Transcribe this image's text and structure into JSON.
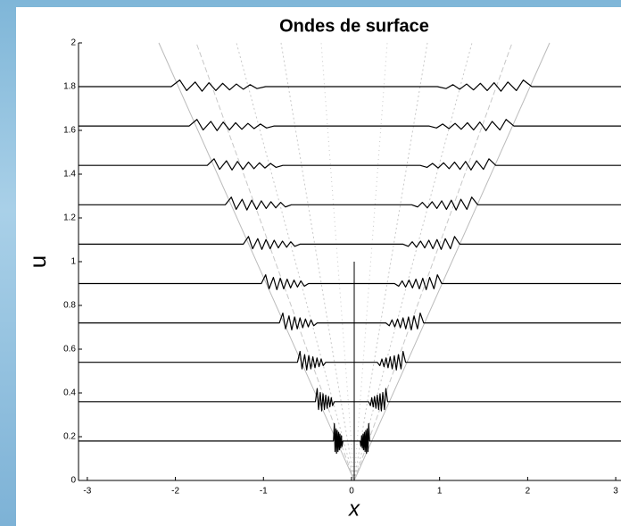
{
  "chart_data": {
    "type": "line",
    "title": "Ondes de surface",
    "x_label": "x",
    "y_label": "u",
    "xlim": [
      -3.1,
      3.06
    ],
    "ylim": [
      0,
      2
    ],
    "xticks": [
      -3,
      -2,
      -1,
      0,
      1,
      2,
      3
    ],
    "yticks": [
      0,
      0.2,
      0.4,
      0.6,
      0.8,
      1,
      1.2,
      1.4,
      1.6,
      1.8,
      2
    ],
    "series": [
      {
        "color": "#000000",
        "x": [
          -3.1,
          -0.205,
          -0.195,
          -0.187,
          -0.177,
          -0.17,
          -0.162,
          -0.154,
          -0.146,
          -0.138,
          -0.131,
          -0.123,
          -0.115,
          -0.107,
          -0.098,
          0.098,
          0.107,
          0.115,
          0.123,
          0.131,
          0.138,
          0.146,
          0.154,
          0.162,
          0.17,
          0.177,
          0.187,
          0.195,
          0.205,
          3.06
        ],
        "values": [
          0.18,
          0.18,
          0.26,
          0.132,
          0.236,
          0.124,
          0.228,
          0.132,
          0.22,
          0.14,
          0.212,
          0.148,
          0.204,
          0.156,
          0.18,
          0.18,
          0.156,
          0.204,
          0.148,
          0.212,
          0.14,
          0.22,
          0.132,
          0.228,
          0.124,
          0.236,
          0.132,
          0.26,
          0.18,
          0.18
        ]
      },
      {
        "color": "#000000",
        "x": [
          -3.1,
          -0.41,
          -0.39,
          -0.374,
          -0.355,
          -0.339,
          -0.324,
          -0.308,
          -0.293,
          -0.277,
          -0.261,
          -0.246,
          -0.23,
          -0.215,
          -0.195,
          0.195,
          0.215,
          0.23,
          0.246,
          0.261,
          0.277,
          0.293,
          0.308,
          0.324,
          0.339,
          0.355,
          0.374,
          0.39,
          0.41,
          3.06
        ],
        "values": [
          0.36,
          0.36,
          0.42,
          0.324,
          0.402,
          0.318,
          0.396,
          0.324,
          0.39,
          0.33,
          0.384,
          0.336,
          0.378,
          0.342,
          0.36,
          0.36,
          0.342,
          0.378,
          0.336,
          0.384,
          0.33,
          0.39,
          0.324,
          0.396,
          0.318,
          0.402,
          0.324,
          0.42,
          0.36,
          0.36
        ]
      },
      {
        "color": "#000000",
        "x": [
          -3.1,
          -0.614,
          -0.585,
          -0.562,
          -0.532,
          -0.509,
          -0.486,
          -0.462,
          -0.439,
          -0.415,
          -0.392,
          -0.369,
          -0.345,
          -0.322,
          -0.293,
          0.293,
          0.322,
          0.345,
          0.369,
          0.392,
          0.415,
          0.439,
          0.462,
          0.486,
          0.509,
          0.532,
          0.562,
          0.585,
          0.614,
          3.06
        ],
        "values": [
          0.54,
          0.54,
          0.59,
          0.51,
          0.575,
          0.505,
          0.57,
          0.51,
          0.565,
          0.515,
          0.56,
          0.52,
          0.555,
          0.525,
          0.54,
          0.54,
          0.525,
          0.555,
          0.52,
          0.56,
          0.515,
          0.565,
          0.51,
          0.57,
          0.505,
          0.575,
          0.51,
          0.59,
          0.54,
          0.54
        ]
      },
      {
        "color": "#000000",
        "x": [
          -3.1,
          -0.819,
          -0.78,
          -0.749,
          -0.71,
          -0.679,
          -0.647,
          -0.616,
          -0.585,
          -0.554,
          -0.523,
          -0.491,
          -0.46,
          -0.429,
          -0.39,
          0.39,
          0.429,
          0.46,
          0.491,
          0.523,
          0.554,
          0.585,
          0.616,
          0.647,
          0.679,
          0.71,
          0.749,
          0.78,
          0.819,
          3.06
        ],
        "values": [
          0.72,
          0.72,
          0.765,
          0.693,
          0.752,
          0.688,
          0.747,
          0.693,
          0.743,
          0.698,
          0.738,
          0.702,
          0.734,
          0.707,
          0.72,
          0.72,
          0.707,
          0.734,
          0.702,
          0.738,
          0.698,
          0.743,
          0.693,
          0.747,
          0.688,
          0.752,
          0.693,
          0.765,
          0.72,
          0.72
        ]
      },
      {
        "color": "#000000",
        "x": [
          -3.1,
          -1.024,
          -0.975,
          -0.936,
          -0.887,
          -0.848,
          -0.809,
          -0.77,
          -0.731,
          -0.692,
          -0.653,
          -0.614,
          -0.575,
          -0.536,
          -0.488,
          0.488,
          0.536,
          0.575,
          0.614,
          0.653,
          0.692,
          0.731,
          0.77,
          0.809,
          0.848,
          0.887,
          0.936,
          0.975,
          1.024,
          3.06
        ],
        "values": [
          0.9,
          0.9,
          0.94,
          0.876,
          0.928,
          0.872,
          0.924,
          0.876,
          0.92,
          0.88,
          0.916,
          0.884,
          0.912,
          0.888,
          0.9,
          0.9,
          0.888,
          0.912,
          0.884,
          0.916,
          0.88,
          0.92,
          0.876,
          0.924,
          0.872,
          0.928,
          0.876,
          0.94,
          0.9,
          0.9
        ]
      },
      {
        "color": "#000000",
        "x": [
          -3.1,
          -1.229,
          -1.17,
          -1.123,
          -1.065,
          -1.018,
          -0.971,
          -0.924,
          -0.878,
          -0.831,
          -0.784,
          -0.737,
          -0.69,
          -0.644,
          -0.585,
          0.585,
          0.644,
          0.69,
          0.737,
          0.784,
          0.831,
          0.878,
          0.924,
          0.971,
          1.018,
          1.065,
          1.123,
          1.17,
          1.229,
          3.06
        ],
        "values": [
          1.08,
          1.08,
          1.115,
          1.059,
          1.105,
          1.056,
          1.101,
          1.059,
          1.098,
          1.063,
          1.094,
          1.066,
          1.091,
          1.07,
          1.08,
          1.08,
          1.07,
          1.091,
          1.066,
          1.094,
          1.063,
          1.098,
          1.059,
          1.101,
          1.056,
          1.105,
          1.059,
          1.115,
          1.08,
          1.08
        ]
      },
      {
        "color": "#000000",
        "x": [
          -3.1,
          -1.433,
          -1.365,
          -1.31,
          -1.242,
          -1.188,
          -1.133,
          -1.078,
          -1.024,
          -0.969,
          -0.915,
          -0.86,
          -0.805,
          -0.751,
          -0.683,
          0.683,
          0.751,
          0.805,
          0.86,
          0.915,
          0.969,
          1.024,
          1.078,
          1.133,
          1.188,
          1.242,
          1.31,
          1.365,
          1.433,
          3.06
        ],
        "values": [
          1.26,
          1.26,
          1.295,
          1.239,
          1.285,
          1.236,
          1.281,
          1.239,
          1.278,
          1.243,
          1.274,
          1.246,
          1.271,
          1.25,
          1.26,
          1.26,
          1.25,
          1.271,
          1.246,
          1.274,
          1.243,
          1.278,
          1.239,
          1.281,
          1.236,
          1.285,
          1.239,
          1.295,
          1.26,
          1.26
        ]
      },
      {
        "color": "#000000",
        "x": [
          -3.1,
          -1.638,
          -1.56,
          -1.498,
          -1.42,
          -1.357,
          -1.295,
          -1.232,
          -1.17,
          -1.108,
          -1.045,
          -0.983,
          -0.92,
          -0.858,
          -0.78,
          0.78,
          0.858,
          0.92,
          0.983,
          1.045,
          1.108,
          1.17,
          1.232,
          1.295,
          1.357,
          1.42,
          1.498,
          1.56,
          1.638,
          3.06
        ],
        "values": [
          1.44,
          1.44,
          1.47,
          1.422,
          1.461,
          1.419,
          1.458,
          1.422,
          1.455,
          1.425,
          1.452,
          1.428,
          1.449,
          1.431,
          1.44,
          1.44,
          1.431,
          1.449,
          1.428,
          1.452,
          1.425,
          1.455,
          1.422,
          1.458,
          1.419,
          1.461,
          1.422,
          1.47,
          1.44,
          1.44
        ]
      },
      {
        "color": "#000000",
        "x": [
          -3.1,
          -1.843,
          -1.755,
          -1.685,
          -1.597,
          -1.527,
          -1.457,
          -1.386,
          -1.316,
          -1.246,
          -1.176,
          -1.106,
          -1.035,
          -0.965,
          -0.878,
          0.878,
          0.965,
          1.035,
          1.106,
          1.176,
          1.246,
          1.316,
          1.386,
          1.457,
          1.527,
          1.597,
          1.685,
          1.755,
          1.843,
          3.06
        ],
        "values": [
          1.62,
          1.62,
          1.65,
          1.602,
          1.641,
          1.599,
          1.638,
          1.602,
          1.635,
          1.605,
          1.632,
          1.608,
          1.629,
          1.611,
          1.62,
          1.62,
          1.611,
          1.629,
          1.608,
          1.632,
          1.605,
          1.635,
          1.602,
          1.638,
          1.599,
          1.641,
          1.602,
          1.65,
          1.62,
          1.62
        ]
      },
      {
        "color": "#000000",
        "x": [
          -3.1,
          -2.048,
          -1.95,
          -1.872,
          -1.775,
          -1.697,
          -1.619,
          -1.541,
          -1.463,
          -1.385,
          -1.307,
          -1.229,
          -1.151,
          -1.073,
          -0.975,
          0.975,
          1.073,
          1.151,
          1.229,
          1.307,
          1.385,
          1.463,
          1.541,
          1.619,
          1.697,
          1.775,
          1.872,
          1.95,
          2.048,
          3.06
        ],
        "values": [
          1.8,
          1.8,
          1.83,
          1.782,
          1.821,
          1.779,
          1.818,
          1.782,
          1.815,
          1.785,
          1.812,
          1.788,
          1.809,
          1.791,
          1.8,
          1.8,
          1.791,
          1.809,
          1.788,
          1.812,
          1.785,
          1.815,
          1.782,
          1.818,
          1.779,
          1.821,
          1.782,
          1.83,
          1.8,
          1.8
        ]
      }
    ]
  }
}
